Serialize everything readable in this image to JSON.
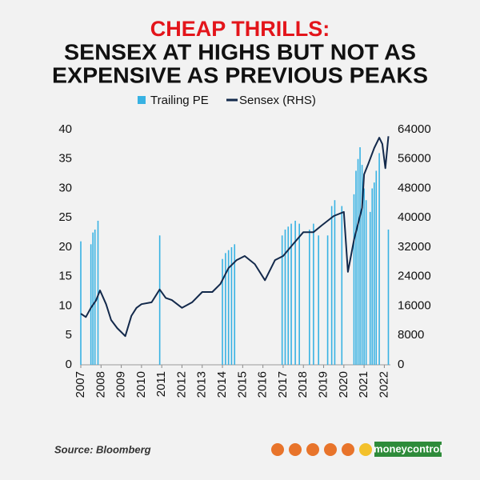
{
  "chart_data": {
    "type": "bar-line",
    "title": "CHEAP THRILLS:",
    "subtitle": [
      "SENSEX AT HIGHS BUT NOT AS",
      "EXPENSIVE AS PREVIOUS PEAKS"
    ],
    "source": "Source: Bloomberg",
    "brand": "moneycontrol",
    "xlim": [
      2007,
      2022.3
    ],
    "xticks": [
      2007,
      2008,
      2009,
      2010,
      2011,
      2012,
      2013,
      2014,
      2015,
      2016,
      2017,
      2018,
      2019,
      2020,
      2021,
      2022
    ],
    "ylim": [
      0,
      40
    ],
    "yticks": [
      0,
      5,
      10,
      15,
      20,
      25,
      30,
      35,
      40
    ],
    "y2lim": [
      0,
      64000
    ],
    "y2ticks": [
      0,
      8000,
      16000,
      24000,
      32000,
      40000,
      48000,
      56000,
      64000
    ],
    "grid": false,
    "legend": "top",
    "series": [
      {
        "name": "Trailing PE",
        "type": "bar",
        "color": "#38b2e3",
        "x": [
          2007.0,
          2007.5,
          2007.6,
          2007.7,
          2007.85,
          2010.9,
          2014.0,
          2014.15,
          2014.3,
          2014.45,
          2014.6,
          2016.95,
          2017.1,
          2017.25,
          2017.4,
          2017.6,
          2017.8,
          2018.3,
          2018.5,
          2018.75,
          2019.2,
          2019.4,
          2019.55,
          2019.9,
          2020.5,
          2020.6,
          2020.7,
          2020.8,
          2020.9,
          2021.0,
          2021.1,
          2021.3,
          2021.4,
          2021.5,
          2021.6,
          2021.75,
          2022.2
        ],
        "values": [
          21,
          20.5,
          22.5,
          23,
          24.5,
          22,
          18,
          19,
          19.5,
          20,
          20.5,
          22,
          23,
          23.5,
          24,
          24.5,
          24,
          23,
          24,
          22,
          22,
          27,
          28,
          27,
          29,
          33,
          35,
          37,
          34,
          30,
          28,
          26,
          30,
          31,
          33,
          36,
          23
        ]
      },
      {
        "name": "Sensex (RHS)",
        "type": "line",
        "color": "#13294b",
        "axis": "y2",
        "x": [
          2007.0,
          2007.25,
          2007.5,
          2007.75,
          2007.95,
          2008.25,
          2008.5,
          2008.8,
          2009.0,
          2009.2,
          2009.5,
          2009.75,
          2010.0,
          2010.5,
          2010.9,
          2011.2,
          2011.5,
          2012.0,
          2012.5,
          2013.0,
          2013.5,
          2013.9,
          2014.3,
          2014.7,
          2015.1,
          2015.6,
          2016.1,
          2016.6,
          2017.0,
          2017.5,
          2018.0,
          2018.5,
          2018.9,
          2019.5,
          2020.0,
          2020.2,
          2020.5,
          2020.9,
          2021.0,
          2021.2,
          2021.5,
          2021.75,
          2021.9,
          2022.05,
          2022.2
        ],
        "values": [
          13900,
          13000,
          15500,
          17500,
          20250,
          16500,
          12200,
          10000,
          8900,
          7800,
          13300,
          15500,
          16500,
          17000,
          20500,
          18200,
          17600,
          15500,
          17000,
          19800,
          19800,
          22000,
          26300,
          28500,
          29600,
          27400,
          23000,
          28500,
          29600,
          32900,
          36100,
          36100,
          37900,
          40500,
          41600,
          25300,
          34000,
          42700,
          51800,
          54600,
          59000,
          61800,
          60100,
          53500,
          62200
        ]
      }
    ]
  }
}
